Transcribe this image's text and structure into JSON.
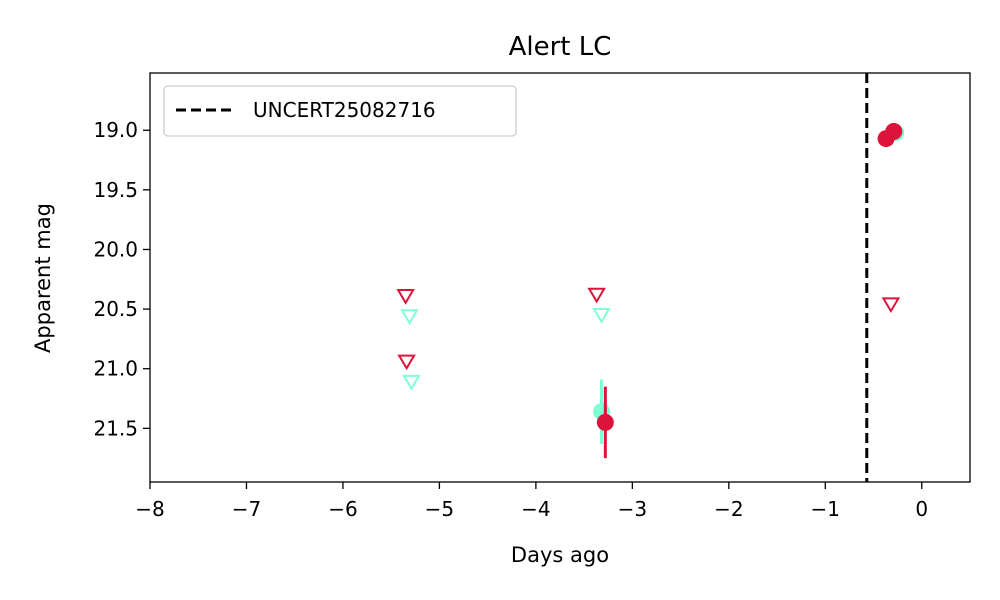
{
  "chart_data": {
    "type": "scatter",
    "title": "Alert LC",
    "xlabel": "Days ago",
    "ylabel": "Apparent mag",
    "xlim": [
      -8,
      0.5
    ],
    "ylim": [
      21.95,
      18.52
    ],
    "y_inverted": true,
    "grid": false,
    "legend_position": "top-left",
    "x_ticks": [
      -8,
      -7,
      -6,
      -5,
      -4,
      -3,
      -2,
      -1,
      0
    ],
    "x_tick_labels": [
      "−8",
      "−7",
      "−6",
      "−5",
      "−4",
      "−3",
      "−2",
      "−1",
      "0"
    ],
    "y_ticks": [
      19.0,
      19.5,
      20.0,
      20.5,
      21.0,
      21.5
    ],
    "y_tick_labels": [
      "19.0",
      "19.5",
      "20.0",
      "20.5",
      "21.0",
      "21.5"
    ],
    "vline": {
      "x": -0.57,
      "label": "UNCERT25082716",
      "color": "#000000",
      "style": "dashed"
    },
    "series": [
      {
        "color": "#7fffd4",
        "detections": [
          {
            "x": -3.32,
            "y": 21.36,
            "yerr": 0.27
          },
          {
            "x": -0.27,
            "y": 19.02,
            "yerr": 0.02
          }
        ],
        "upper_limits": [
          {
            "x": -5.29,
            "y": 21.11
          },
          {
            "x": -5.31,
            "y": 20.56
          },
          {
            "x": -3.32,
            "y": 20.55
          }
        ]
      },
      {
        "color": "#dc143c",
        "detections": [
          {
            "x": -3.28,
            "y": 21.45,
            "yerr": 0.3
          },
          {
            "x": -0.29,
            "y": 19.01,
            "yerr": 0.02
          },
          {
            "x": -0.37,
            "y": 19.07,
            "yerr": 0.02
          }
        ],
        "upper_limits": [
          {
            "x": -5.35,
            "y": 20.39
          },
          {
            "x": -5.34,
            "y": 20.94
          },
          {
            "x": -3.37,
            "y": 20.38
          },
          {
            "x": -0.32,
            "y": 20.46
          }
        ]
      }
    ]
  }
}
